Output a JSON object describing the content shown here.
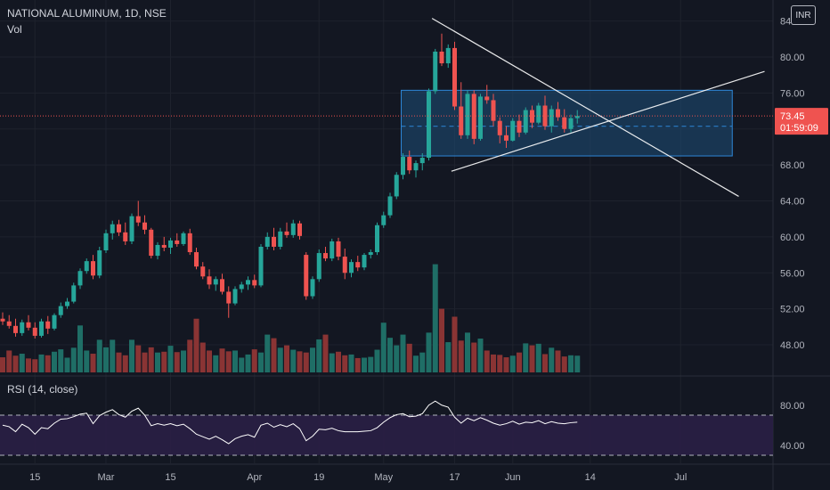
{
  "header": {
    "symbol": "NATIONAL ALUMINUM, 1D, NSE",
    "volume_label": "Vol",
    "rsi_label": "RSI (14, close)",
    "currency": "INR"
  },
  "colors": {
    "up": "#26a69a",
    "down": "#ef5350",
    "up_vol": "#1f6e66",
    "down_vol": "#8a3434",
    "box_fill": "#1e4e79",
    "box_line": "#2d87d8",
    "trend_line": "#ffffff",
    "rsi_line": "#ffffff",
    "rsi_band": "#2a1f45",
    "grid": "#1e222d",
    "price_label_bg": "#ef5350"
  },
  "chart_data": [
    {
      "type": "candlestick",
      "ylim": [
        45,
        85
      ],
      "ytick_values": [
        48,
        52,
        56,
        60,
        64,
        68,
        72,
        76,
        80,
        84
      ],
      "ytick_labels": [
        "48.00",
        "52.00",
        "56.00",
        "60.00",
        "64.00",
        "68.00",
        "72.00",
        "76.00",
        "80.00",
        "84.00"
      ],
      "xticks": [
        {
          "bar": 5,
          "label": "15"
        },
        {
          "bar": 16,
          "label": "Mar"
        },
        {
          "bar": 26,
          "label": "15"
        },
        {
          "bar": 39,
          "label": "Apr"
        },
        {
          "bar": 49,
          "label": "19"
        },
        {
          "bar": 59,
          "label": "May"
        },
        {
          "bar": 70,
          "label": "17"
        },
        {
          "bar": 79,
          "label": "Jun"
        },
        {
          "bar": 91,
          "label": "14"
        },
        {
          "bar": 105,
          "label": "Jul"
        }
      ],
      "last_price": "73.45",
      "countdown": "01:59:09",
      "last_price_value": 73.45,
      "candles": [
        [
          50.9,
          51.6,
          50.2,
          50.6
        ],
        [
          50.6,
          51.3,
          49.8,
          50.1
        ],
        [
          50.1,
          50.9,
          48.9,
          49.3
        ],
        [
          49.3,
          50.8,
          49.0,
          50.5
        ],
        [
          50.5,
          51.3,
          49.6,
          49.9
        ],
        [
          49.9,
          50.5,
          48.7,
          49.0
        ],
        [
          49.0,
          50.9,
          48.8,
          50.6
        ],
        [
          50.6,
          51.2,
          49.2,
          49.8
        ],
        [
          49.8,
          51.5,
          49.6,
          51.3
        ],
        [
          51.3,
          52.7,
          51.0,
          52.3
        ],
        [
          52.3,
          53.2,
          52.0,
          52.8
        ],
        [
          52.8,
          54.9,
          52.6,
          54.6
        ],
        [
          54.6,
          56.5,
          54.2,
          56.2
        ],
        [
          56.2,
          57.6,
          55.9,
          57.3
        ],
        [
          57.3,
          58.0,
          55.3,
          55.7
        ],
        [
          55.7,
          58.9,
          55.4,
          58.5
        ],
        [
          58.5,
          60.8,
          58.2,
          60.4
        ],
        [
          60.4,
          61.8,
          59.7,
          61.4
        ],
        [
          61.4,
          61.9,
          60.1,
          60.5
        ],
        [
          60.5,
          61.6,
          59.1,
          59.5
        ],
        [
          59.5,
          62.6,
          59.2,
          62.3
        ],
        [
          62.3,
          64.0,
          61.2,
          61.6
        ],
        [
          61.6,
          62.4,
          60.3,
          60.8
        ],
        [
          60.8,
          61.0,
          57.6,
          57.9
        ],
        [
          57.9,
          59.4,
          57.5,
          59.1
        ],
        [
          59.1,
          60.0,
          58.4,
          58.8
        ],
        [
          58.8,
          59.9,
          58.1,
          59.6
        ],
        [
          59.6,
          60.4,
          58.9,
          59.2
        ],
        [
          59.2,
          60.6,
          59.0,
          60.4
        ],
        [
          60.4,
          60.9,
          58.0,
          58.3
        ],
        [
          58.3,
          58.8,
          56.4,
          56.7
        ],
        [
          56.7,
          57.2,
          55.3,
          55.6
        ],
        [
          55.6,
          56.4,
          54.2,
          54.7
        ],
        [
          54.7,
          55.6,
          54.0,
          55.3
        ],
        [
          55.3,
          55.9,
          53.6,
          53.9
        ],
        [
          53.9,
          54.5,
          51.0,
          52.6
        ],
        [
          52.6,
          54.5,
          52.4,
          54.2
        ],
        [
          54.2,
          55.0,
          53.8,
          54.7
        ],
        [
          54.7,
          55.6,
          54.1,
          55.2
        ],
        [
          55.2,
          55.8,
          54.3,
          54.6
        ],
        [
          54.6,
          59.2,
          54.4,
          58.9
        ],
        [
          58.9,
          60.5,
          58.6,
          60.0
        ],
        [
          60.0,
          61.0,
          58.5,
          58.9
        ],
        [
          58.9,
          61.0,
          58.6,
          60.6
        ],
        [
          60.6,
          61.6,
          59.9,
          60.2
        ],
        [
          60.2,
          61.9,
          59.9,
          61.5
        ],
        [
          61.5,
          61.8,
          59.7,
          60.1
        ],
        [
          58.0,
          58.3,
          53.0,
          53.4
        ],
        [
          53.4,
          55.6,
          53.1,
          55.3
        ],
        [
          55.3,
          58.6,
          55.0,
          58.2
        ],
        [
          58.2,
          58.9,
          57.3,
          57.6
        ],
        [
          57.6,
          59.8,
          57.3,
          59.5
        ],
        [
          59.5,
          59.9,
          57.4,
          57.8
        ],
        [
          57.8,
          58.7,
          55.3,
          56.0
        ],
        [
          56.0,
          57.5,
          55.5,
          57.2
        ],
        [
          57.2,
          57.9,
          56.2,
          56.6
        ],
        [
          56.6,
          58.2,
          56.3,
          58.0
        ],
        [
          58.0,
          58.6,
          57.6,
          58.3
        ],
        [
          58.3,
          61.6,
          58.0,
          61.3
        ],
        [
          61.3,
          62.8,
          61.0,
          62.4
        ],
        [
          62.4,
          64.9,
          62.1,
          64.5
        ],
        [
          64.5,
          67.2,
          64.2,
          66.9
        ],
        [
          66.9,
          69.3,
          66.4,
          68.9
        ],
        [
          68.9,
          69.6,
          67.0,
          67.4
        ],
        [
          67.4,
          68.5,
          66.6,
          68.2
        ],
        [
          68.2,
          69.3,
          67.4,
          68.8
        ],
        [
          68.8,
          76.5,
          68.5,
          76.2
        ],
        [
          76.2,
          80.9,
          75.9,
          80.6
        ],
        [
          80.6,
          82.6,
          79.0,
          79.3
        ],
        [
          79.3,
          81.4,
          78.8,
          81.0
        ],
        [
          81.0,
          81.7,
          74.1,
          74.5
        ],
        [
          74.5,
          77.2,
          70.9,
          71.3
        ],
        [
          71.3,
          76.3,
          70.9,
          75.9
        ],
        [
          75.9,
          76.3,
          70.3,
          70.9
        ],
        [
          70.9,
          75.9,
          70.7,
          75.6
        ],
        [
          75.6,
          76.9,
          74.8,
          75.2
        ],
        [
          75.2,
          75.9,
          72.3,
          72.9
        ],
        [
          72.9,
          73.3,
          70.4,
          71.3
        ],
        [
          71.3,
          72.3,
          69.9,
          70.7
        ],
        [
          70.7,
          73.2,
          70.6,
          72.9
        ],
        [
          72.9,
          73.6,
          71.1,
          71.6
        ],
        [
          71.6,
          74.4,
          71.4,
          74.1
        ],
        [
          74.1,
          74.6,
          72.1,
          72.7
        ],
        [
          72.7,
          74.9,
          72.5,
          74.6
        ],
        [
          74.6,
          75.7,
          71.9,
          72.3
        ],
        [
          72.3,
          74.6,
          71.6,
          74.2
        ],
        [
          74.2,
          75.0,
          72.9,
          73.3
        ],
        [
          73.3,
          74.2,
          71.6,
          72.0
        ],
        [
          72.0,
          73.6,
          71.6,
          73.2
        ],
        [
          73.2,
          74.1,
          72.6,
          73.45
        ]
      ],
      "volume": [
        38,
        55,
        42,
        47,
        35,
        33,
        45,
        43,
        52,
        58,
        37,
        62,
        118,
        55,
        47,
        82,
        63,
        82,
        50,
        43,
        82,
        68,
        50,
        63,
        50,
        52,
        67,
        51,
        55,
        82,
        135,
        75,
        55,
        43,
        60,
        53,
        55,
        37,
        45,
        58,
        50,
        95,
        86,
        62,
        68,
        57,
        53,
        50,
        62,
        83,
        95,
        48,
        52,
        43,
        45,
        36,
        37,
        39,
        57,
        125,
        87,
        68,
        95,
        72,
        42,
        50,
        100,
        272,
        160,
        76,
        140,
        80,
        100,
        75,
        85,
        55,
        45,
        44,
        38,
        42,
        50,
        73,
        68,
        72,
        46,
        62,
        55,
        40,
        43,
        42
      ],
      "volume_max": 280,
      "box": {
        "bar_start": 62,
        "bar_end": 113,
        "top": 76.3,
        "bottom": 69.0,
        "mid": 72.3
      },
      "trend_lines": [
        {
          "from": {
            "bar": 66.5,
            "price": 84.3
          },
          "to": {
            "bar": 114,
            "price": 64.5
          }
        },
        {
          "from": {
            "bar": 69.5,
            "price": 67.3
          },
          "to": {
            "bar": 118,
            "price": 78.4
          }
        }
      ]
    },
    {
      "type": "line",
      "name": "RSI (14, close)",
      "ylim": [
        20,
        92
      ],
      "ytick_values": [
        40,
        80
      ],
      "ytick_labels": [
        "40.00",
        "80.00"
      ],
      "band": [
        30,
        70
      ],
      "values": [
        60.0,
        58.5,
        53.5,
        61.0,
        57.5,
        51.0,
        57.5,
        56.5,
        62.0,
        66.0,
        66.5,
        68.5,
        71.0,
        72.0,
        61.5,
        69.5,
        73.0,
        75.5,
        70.5,
        68.0,
        74.0,
        77.0,
        70.0,
        59.5,
        61.5,
        60.0,
        61.5,
        59.5,
        61.0,
        56.5,
        51.0,
        48.5,
        46.0,
        49.0,
        45.5,
        41.5,
        46.5,
        49.0,
        50.5,
        48.0,
        60.0,
        62.0,
        58.0,
        60.5,
        58.5,
        61.5,
        56.5,
        44.5,
        49.0,
        56.0,
        55.5,
        57.0,
        54.5,
        53.5,
        53.5,
        53.5,
        54.0,
        54.5,
        57.5,
        63.0,
        67.5,
        70.5,
        71.5,
        68.5,
        69.0,
        71.5,
        80.0,
        84.0,
        80.0,
        78.0,
        68.0,
        62.0,
        67.0,
        64.5,
        67.5,
        65.0,
        62.0,
        60.0,
        61.5,
        64.0,
        61.0,
        63.0,
        62.5,
        64.5,
        61.5,
        63.5,
        62.0,
        61.5,
        62.5,
        63.0
      ]
    }
  ]
}
